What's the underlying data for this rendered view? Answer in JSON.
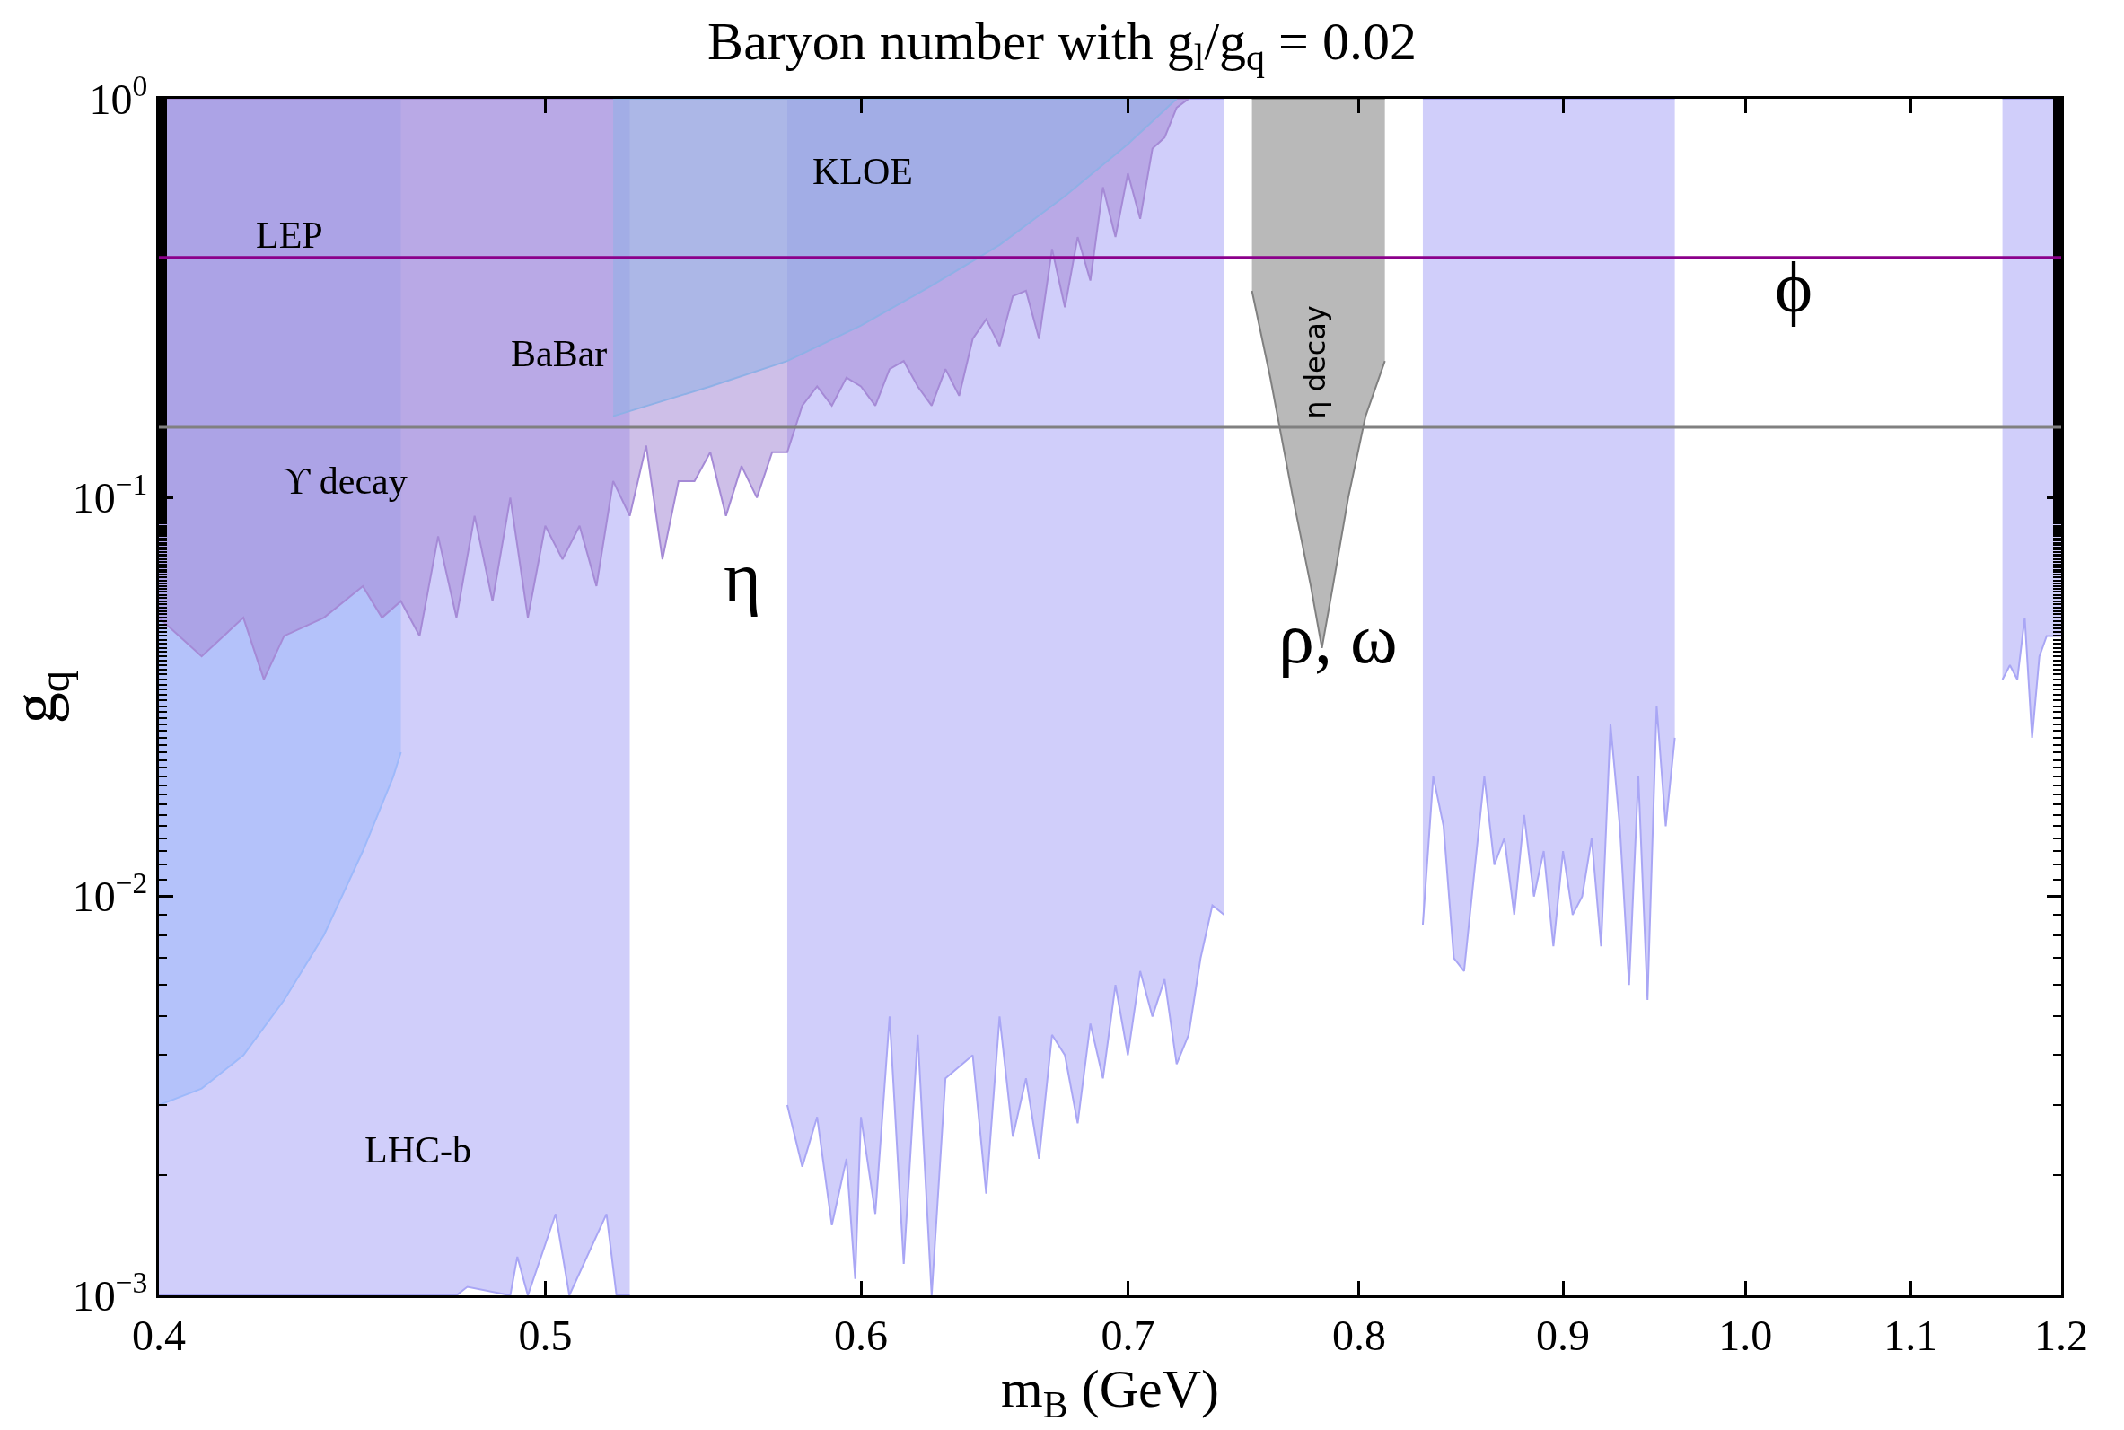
{
  "chart_data": {
    "type": "line",
    "title": "Baryon number with g$_{l}$/g$_{q}$ = 0.02",
    "xlabel": "m$_{B}$ (GeV)",
    "ylabel": "g$_{q}$",
    "log": "xy",
    "xlim": [
      0.4,
      1.2
    ],
    "xticks": [
      0.4,
      0.5,
      0.6,
      0.7,
      0.8,
      0.9,
      {
        "value": 1.0,
        "label": "1.0"
      },
      1.1,
      1.2
    ],
    "ylim": [
      0.001,
      1
    ],
    "yticks": [
      {
        "value": 0.001,
        "label": "10$^{−3}$"
      },
      {
        "value": 0.01,
        "label": "10$^{−2}$"
      },
      {
        "value": 0.1,
        "label": "10$^{−1}$"
      },
      {
        "value": 1,
        "label": "10$^{0}$"
      }
    ],
    "series": [
      {
        "color": "#8fd0ff",
        "x": [
          0.4,
          0.41,
          0.42,
          0.43,
          0.44,
          0.45,
          0.458,
          0.46
        ],
        "values": [
          0.003,
          0.0033,
          0.004,
          0.0055,
          0.008,
          0.013,
          0.02,
          0.023
        ],
        "lower": [
          0.003,
          0.0033,
          0.004,
          0.0055,
          0.008,
          0.013,
          0.02,
          0.023
        ],
        "upper": [
          1,
          1,
          1,
          1,
          1,
          1,
          1,
          1
        ]
      },
      {
        "color": "#a9a6f5",
        "x": [
          0.4,
          0.475,
          0.478,
          0.49,
          0.492,
          0.495,
          0.503,
          0.507,
          0.518,
          0.521,
          0.525,
          0.55,
          0.575,
          0.58,
          0.585,
          0.59,
          0.595,
          0.598,
          0.6,
          0.605,
          0.61,
          0.615,
          0.62,
          0.625,
          0.63,
          0.64,
          0.645,
          0.65,
          0.655,
          0.66,
          0.665,
          0.67,
          0.675,
          0.68,
          0.685,
          0.69,
          0.695,
          0.7,
          0.705,
          0.71,
          0.715,
          0.72,
          0.725,
          0.73,
          0.735,
          0.74,
          0.8,
          0.83,
          0.835,
          0.84,
          0.845,
          0.85,
          0.86,
          0.865,
          0.87,
          0.875,
          0.88,
          0.885,
          0.89,
          0.895,
          0.9,
          0.905,
          0.91,
          0.915,
          0.92,
          0.925,
          0.93,
          0.935,
          0.94,
          0.945,
          0.95,
          0.955,
          0.96,
          1.05,
          1.16,
          1.165,
          1.17,
          1.175,
          1.18,
          1.185,
          1.19,
          1.2
        ],
        "values": [
          0.001,
          0.001,
          0.00105,
          0.001,
          0.00125,
          0.001,
          0.0016,
          0.001,
          0.0016,
          0.001,
          0.001,
          null,
          0.003,
          0.0021,
          0.0028,
          0.0015,
          0.0022,
          0.0011,
          0.0028,
          0.0016,
          0.005,
          0.0012,
          0.0045,
          0.001,
          0.0035,
          0.004,
          0.0018,
          0.005,
          0.0025,
          0.0035,
          0.0022,
          0.0045,
          0.004,
          0.0027,
          0.0048,
          0.0035,
          0.006,
          0.004,
          0.0065,
          0.005,
          0.0062,
          0.0038,
          0.0045,
          0.007,
          0.0095,
          0.009,
          null,
          0.0085,
          0.02,
          0.015,
          0.007,
          0.0065,
          0.02,
          0.012,
          0.014,
          0.009,
          0.016,
          0.01,
          0.013,
          0.0075,
          0.013,
          0.009,
          0.01,
          0.014,
          0.0075,
          0.027,
          0.015,
          0.006,
          0.02,
          0.0055,
          0.03,
          0.015,
          0.025,
          null,
          0.035,
          0.038,
          0.035,
          0.05,
          0.025,
          0.04,
          0.045,
          0.045
        ],
        "lower": [
          0.001,
          0.001,
          0.00105,
          0.001,
          0.00125,
          0.001,
          0.0016,
          0.001,
          0.0016,
          0.001,
          0.001,
          null,
          0.003,
          0.0021,
          0.0028,
          0.0015,
          0.0022,
          0.0011,
          0.0028,
          0.0016,
          0.005,
          0.0012,
          0.0045,
          0.001,
          0.0035,
          0.004,
          0.0018,
          0.005,
          0.0025,
          0.0035,
          0.0022,
          0.0045,
          0.004,
          0.0027,
          0.0048,
          0.0035,
          0.006,
          0.004,
          0.0065,
          0.005,
          0.0062,
          0.0038,
          0.0045,
          0.007,
          0.0095,
          0.009,
          null,
          0.0085,
          0.02,
          0.015,
          0.007,
          0.0065,
          0.02,
          0.012,
          0.014,
          0.009,
          0.016,
          0.01,
          0.013,
          0.0075,
          0.013,
          0.009,
          0.01,
          0.014,
          0.0075,
          0.027,
          0.015,
          0.006,
          0.02,
          0.0055,
          0.03,
          0.015,
          0.025,
          null,
          0.035,
          0.038,
          0.035,
          0.05,
          0.025,
          0.04,
          0.045,
          0.045
        ],
        "upper": [
          1,
          1,
          1,
          1,
          1,
          1,
          1,
          1,
          1,
          1,
          1,
          null,
          1,
          1,
          1,
          1,
          1,
          1,
          1,
          1,
          1,
          1,
          1,
          1,
          1,
          1,
          1,
          1,
          1,
          1,
          1,
          1,
          1,
          1,
          1,
          1,
          1,
          1,
          1,
          1,
          1,
          1,
          1,
          1,
          1,
          1,
          null,
          1,
          1,
          1,
          1,
          1,
          1,
          1,
          1,
          1,
          1,
          1,
          1,
          1,
          1,
          1,
          1,
          1,
          1,
          1,
          1,
          1,
          1,
          1,
          1,
          1,
          1,
          null,
          1,
          1,
          1,
          1,
          1,
          1,
          1,
          1
        ]
      },
      {
        "color": "#a58ad6",
        "x": [
          0.4,
          0.41,
          0.42,
          0.425,
          0.43,
          0.44,
          0.45,
          0.455,
          0.46,
          0.465,
          0.47,
          0.475,
          0.48,
          0.485,
          0.49,
          0.495,
          0.5,
          0.505,
          0.51,
          0.515,
          0.52,
          0.525,
          0.53,
          0.535,
          0.54,
          0.545,
          0.55,
          0.555,
          0.56,
          0.565,
          0.57,
          0.575,
          0.58,
          0.585,
          0.59,
          0.595,
          0.6,
          0.605,
          0.61,
          0.615,
          0.62,
          0.625,
          0.63,
          0.635,
          0.64,
          0.645,
          0.65,
          0.655,
          0.66,
          0.665,
          0.67,
          0.675,
          0.68,
          0.685,
          0.69,
          0.695,
          0.7,
          0.705,
          0.71,
          0.715,
          0.72,
          0.725
        ],
        "values": [
          0.05,
          0.04,
          0.05,
          0.035,
          0.045,
          0.05,
          0.06,
          0.05,
          0.055,
          0.045,
          0.08,
          0.05,
          0.09,
          0.055,
          0.1,
          0.05,
          0.085,
          0.07,
          0.085,
          0.06,
          0.11,
          0.09,
          0.135,
          0.07,
          0.11,
          0.11,
          0.13,
          0.09,
          0.12,
          0.1,
          0.13,
          0.13,
          0.17,
          0.19,
          0.17,
          0.2,
          0.19,
          0.17,
          0.21,
          0.22,
          0.19,
          0.17,
          0.21,
          0.18,
          0.25,
          0.28,
          0.24,
          0.32,
          0.33,
          0.25,
          0.42,
          0.3,
          0.45,
          0.35,
          0.6,
          0.45,
          0.65,
          0.5,
          0.75,
          0.8,
          0.95,
          1.0
        ],
        "lower": [
          0.05,
          0.04,
          0.05,
          0.035,
          0.045,
          0.05,
          0.06,
          0.05,
          0.055,
          0.045,
          0.08,
          0.05,
          0.09,
          0.055,
          0.1,
          0.05,
          0.085,
          0.07,
          0.085,
          0.06,
          0.11,
          0.09,
          0.135,
          0.07,
          0.11,
          0.11,
          0.13,
          0.09,
          0.12,
          0.1,
          0.13,
          0.13,
          0.17,
          0.19,
          0.17,
          0.2,
          0.19,
          0.17,
          0.21,
          0.22,
          0.19,
          0.17,
          0.21,
          0.18,
          0.25,
          0.28,
          0.24,
          0.32,
          0.33,
          0.25,
          0.42,
          0.3,
          0.45,
          0.35,
          0.6,
          0.45,
          0.65,
          0.5,
          0.75,
          0.8,
          0.95,
          1.0
        ],
        "upper": [
          1,
          1,
          1,
          1,
          1,
          1,
          1,
          1,
          1,
          1,
          1,
          1,
          1,
          1,
          1,
          1,
          1,
          1,
          1,
          1,
          1,
          1,
          1,
          1,
          1,
          1,
          1,
          1,
          1,
          1,
          1,
          1,
          1,
          1,
          1,
          1,
          1,
          1,
          1,
          1,
          1,
          1,
          1,
          1,
          1,
          1,
          1,
          1,
          1,
          1,
          1,
          1,
          1,
          1,
          1,
          1,
          1,
          1,
          1,
          1,
          1,
          1
        ]
      },
      {
        "color": "#8fb0e6",
        "x": [
          0.52,
          0.55,
          0.575,
          0.6,
          0.625,
          0.65,
          0.675,
          0.7,
          0.72
        ],
        "values": [
          0.16,
          0.19,
          0.22,
          0.27,
          0.34,
          0.43,
          0.57,
          0.77,
          1.0
        ],
        "lower": [
          0.16,
          0.19,
          0.22,
          0.27,
          0.34,
          0.43,
          0.57,
          0.77,
          1.0
        ],
        "upper": [
          1,
          1,
          1,
          1,
          1,
          1,
          1,
          1,
          1
        ]
      },
      {
        "color": "#808080",
        "x": [
          0.752,
          0.76,
          0.77,
          0.778,
          0.783,
          0.788,
          0.795,
          0.803,
          0.812
        ],
        "values": [
          0.33,
          0.2,
          0.1,
          0.06,
          0.042,
          0.06,
          0.1,
          0.16,
          0.22
        ],
        "lower": [
          0.33,
          0.2,
          0.1,
          0.06,
          0.042,
          0.06,
          0.1,
          0.16,
          0.22
        ],
        "upper": [
          1,
          1,
          1,
          1,
          1,
          1,
          1,
          1,
          1
        ]
      }
    ],
    "ref_lines": [
      {
        "axis": "y",
        "value": 0.4,
        "color": "#8b008b"
      },
      {
        "axis": "y",
        "value": 0.15,
        "color": "#808080"
      }
    ],
    "annotations": [
      "LEP",
      "BaBar",
      "KLOE",
      "ϒ decay",
      "LHC-b",
      "η",
      "ρ, ω",
      "ϕ",
      "η decay"
    ]
  }
}
